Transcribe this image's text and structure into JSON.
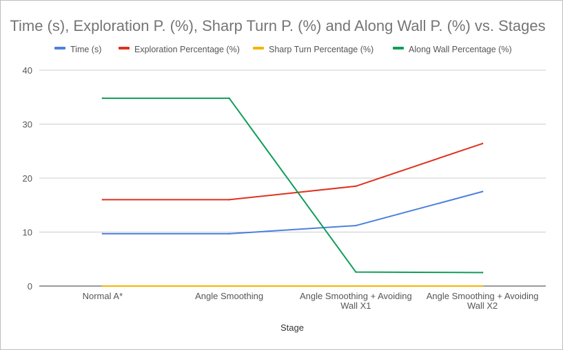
{
  "chart_data": {
    "type": "line",
    "title": "Time (s), Exploration P. (%), Sharp Turn P. (%) and Along Wall P. (%) vs. Stages",
    "xlabel": "Stage",
    "ylabel": "",
    "categories": [
      [
        "Normal A*"
      ],
      [
        "Angle Smoothing"
      ],
      [
        "Angle Smoothing + Avoiding",
        "Wall X1"
      ],
      [
        "Angle Smoothing + Avoiding",
        "Wall X2"
      ]
    ],
    "ylim": [
      0,
      40
    ],
    "yticks": [
      0,
      10,
      20,
      30,
      40
    ],
    "grid": true,
    "legend_position": "top",
    "series": [
      {
        "name": "Time (s)",
        "color": "#4a7fe0",
        "values": [
          9.7,
          9.7,
          11.2,
          17.5
        ]
      },
      {
        "name": "Exploration Percentage (%)",
        "color": "#e0301e",
        "values": [
          16.0,
          16.0,
          18.5,
          26.4
        ]
      },
      {
        "name": "Sharp Turn Percentage (%)",
        "color": "#f4b400",
        "values": [
          0,
          0,
          0,
          0
        ]
      },
      {
        "name": "Along Wall Percentage (%)",
        "color": "#0f9d58",
        "values": [
          34.8,
          34.8,
          2.6,
          2.5
        ]
      }
    ]
  }
}
